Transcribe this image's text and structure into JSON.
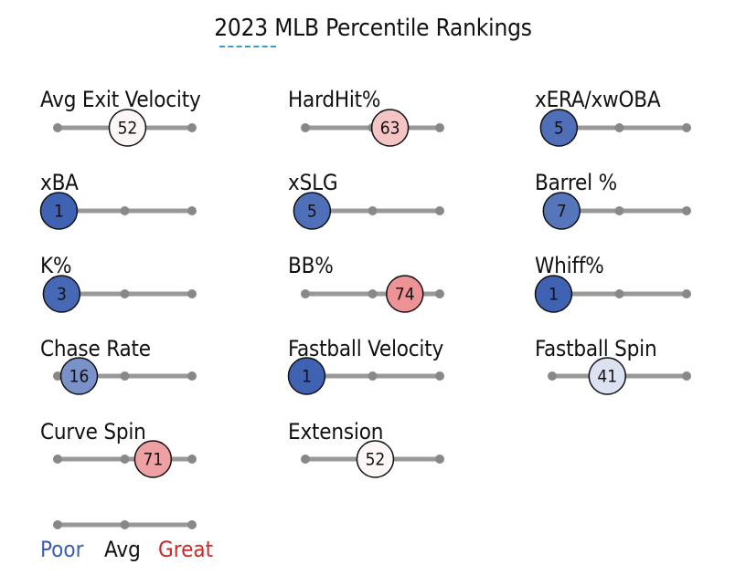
{
  "title": "2023 MLB Percentile Rankings",
  "colors": {
    "poor": "#3b5fb0",
    "avg": "#111111",
    "great": "#cc2a2a",
    "track": "#999999",
    "tick": "#888888"
  },
  "legend": {
    "poor": "Poor",
    "avg": "Avg",
    "great": "Great"
  },
  "chart_data": {
    "type": "dot-slider",
    "title": "2023 MLB Percentile Rankings",
    "scale": [
      0,
      100
    ],
    "metrics": [
      {
        "label": "Avg Exit Velocity",
        "percentile": 52
      },
      {
        "label": "HardHit%",
        "percentile": 63
      },
      {
        "label": "xERA/xwOBA",
        "percentile": 5
      },
      {
        "label": "xBA",
        "percentile": 1
      },
      {
        "label": "xSLG",
        "percentile": 5
      },
      {
        "label": "Barrel %",
        "percentile": 7
      },
      {
        "label": "K%",
        "percentile": 3
      },
      {
        "label": "BB%",
        "percentile": 74
      },
      {
        "label": "Whiff%",
        "percentile": 1
      },
      {
        "label": "Chase Rate",
        "percentile": 16
      },
      {
        "label": "Fastball Velocity",
        "percentile": 1
      },
      {
        "label": "Fastball Spin",
        "percentile": 41
      },
      {
        "label": "Curve Spin",
        "percentile": 71
      },
      {
        "label": "Extension",
        "percentile": 52
      }
    ]
  }
}
